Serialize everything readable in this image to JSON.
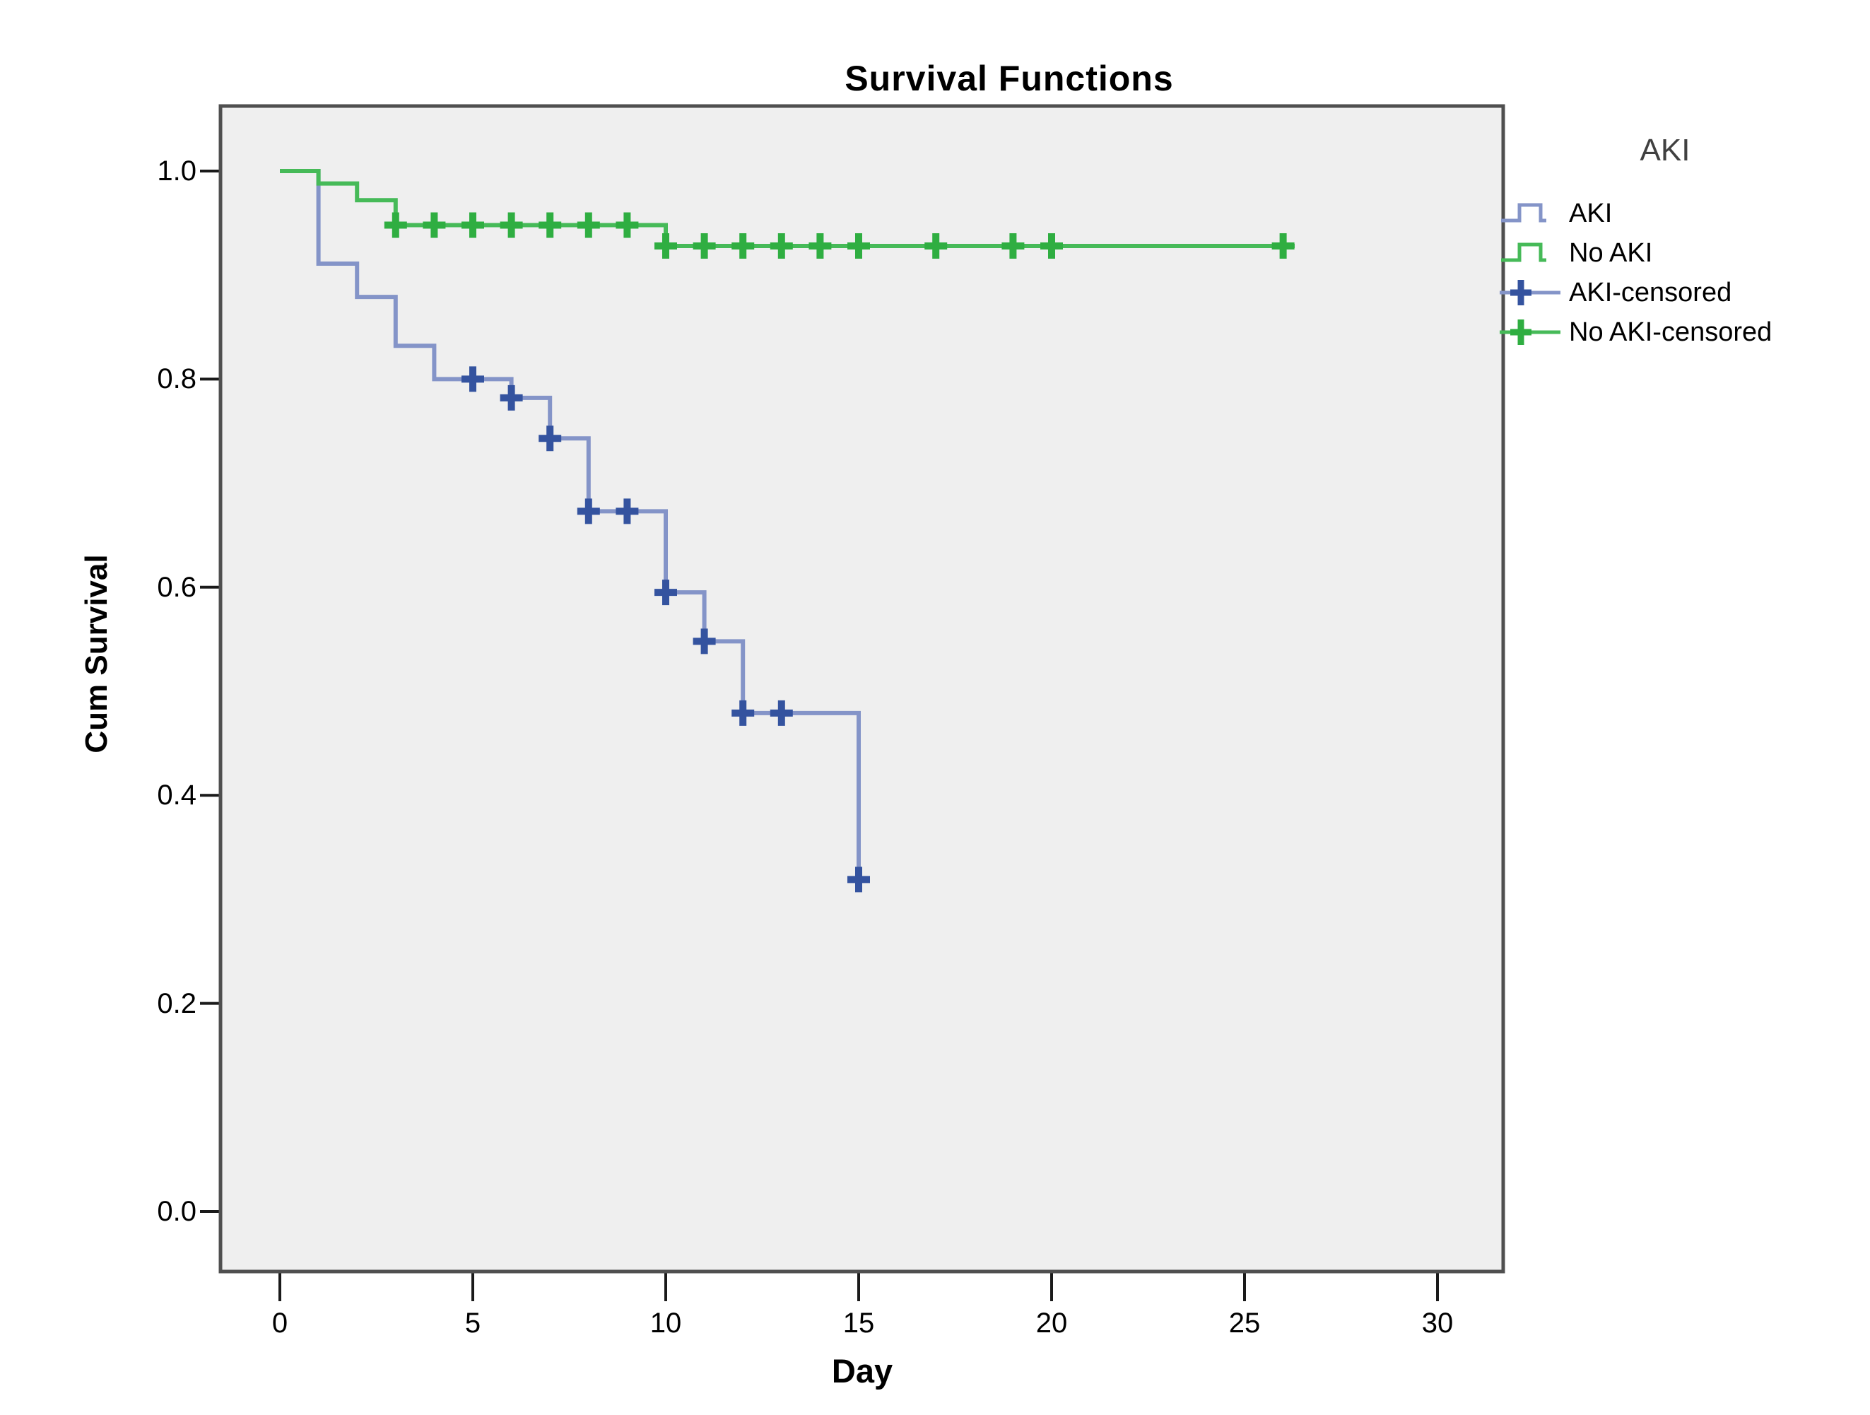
{
  "title": "Survival Functions",
  "x_axis_title": "Day",
  "y_axis_title": "Cum Survival",
  "legend": {
    "title": "AKI",
    "items": [
      {
        "label": "AKI",
        "symbol": "step-line",
        "color_role": "aki_line"
      },
      {
        "label": "No AKI",
        "symbol": "step-line",
        "color_role": "no_aki_line"
      },
      {
        "label": "AKI-censored",
        "symbol": "censor-plus",
        "color_role": "aki_censor"
      },
      {
        "label": "No AKI-censored",
        "symbol": "censor-plus",
        "color_role": "no_aki_censor"
      }
    ]
  },
  "colors": {
    "aki_line": "#8494c8",
    "aki_censor": "#34539f",
    "no_aki_line": "#46ba58",
    "no_aki_censor": "#2fae41",
    "plot_background": "#efefef",
    "frame": "#4f4f4f",
    "tick": "#1a1a1a",
    "text": "#000000",
    "legend_title_text": "#404040"
  },
  "chart_data": {
    "type": "line",
    "subtype": "kaplan_meier_step",
    "title": "Survival Functions",
    "xlabel": "Day",
    "ylabel": "Cum Survival",
    "x_ticks": [
      0,
      5,
      10,
      15,
      20,
      25,
      30
    ],
    "y_ticks": [
      "0.0",
      "0.2",
      "0.4",
      "0.6",
      "0.8",
      "1.0"
    ],
    "xlim": [
      -1.5,
      31.7
    ],
    "ylim": [
      -0.058,
      1.063
    ],
    "grid": false,
    "legend_position": "right",
    "series": [
      {
        "name": "AKI",
        "color": "#8494c8",
        "censor_color": "#34539f",
        "steps": [
          [
            0,
            1.0
          ],
          [
            1,
            0.911
          ],
          [
            2,
            0.879
          ],
          [
            3,
            0.832
          ],
          [
            4,
            0.8
          ],
          [
            6,
            0.782
          ],
          [
            7,
            0.743
          ],
          [
            8,
            0.673
          ],
          [
            10,
            0.595
          ],
          [
            11,
            0.548
          ],
          [
            12,
            0.479
          ],
          [
            15,
            0.319
          ]
        ],
        "censored": [
          [
            5,
            0.8
          ],
          [
            6,
            0.782
          ],
          [
            7,
            0.743
          ],
          [
            8,
            0.673
          ],
          [
            9,
            0.673
          ],
          [
            10,
            0.595
          ],
          [
            11,
            0.548
          ],
          [
            12,
            0.479
          ],
          [
            13,
            0.479
          ],
          [
            15,
            0.319
          ]
        ],
        "end_day": 15
      },
      {
        "name": "No AKI",
        "color": "#46ba58",
        "censor_color": "#2fae41",
        "steps": [
          [
            0,
            1.0
          ],
          [
            1,
            0.988
          ],
          [
            2,
            0.972
          ],
          [
            3,
            0.948
          ],
          [
            10,
            0.928
          ]
        ],
        "censored": [
          [
            3,
            0.948
          ],
          [
            4,
            0.948
          ],
          [
            5,
            0.948
          ],
          [
            6,
            0.948
          ],
          [
            7,
            0.948
          ],
          [
            8,
            0.948
          ],
          [
            9,
            0.948
          ],
          [
            10,
            0.928
          ],
          [
            11,
            0.928
          ],
          [
            12,
            0.928
          ],
          [
            13,
            0.928
          ],
          [
            14,
            0.928
          ],
          [
            15,
            0.928
          ],
          [
            17,
            0.928
          ],
          [
            19,
            0.928
          ],
          [
            20,
            0.928
          ],
          [
            26,
            0.928
          ]
        ],
        "end_day": 26.3
      }
    ]
  }
}
